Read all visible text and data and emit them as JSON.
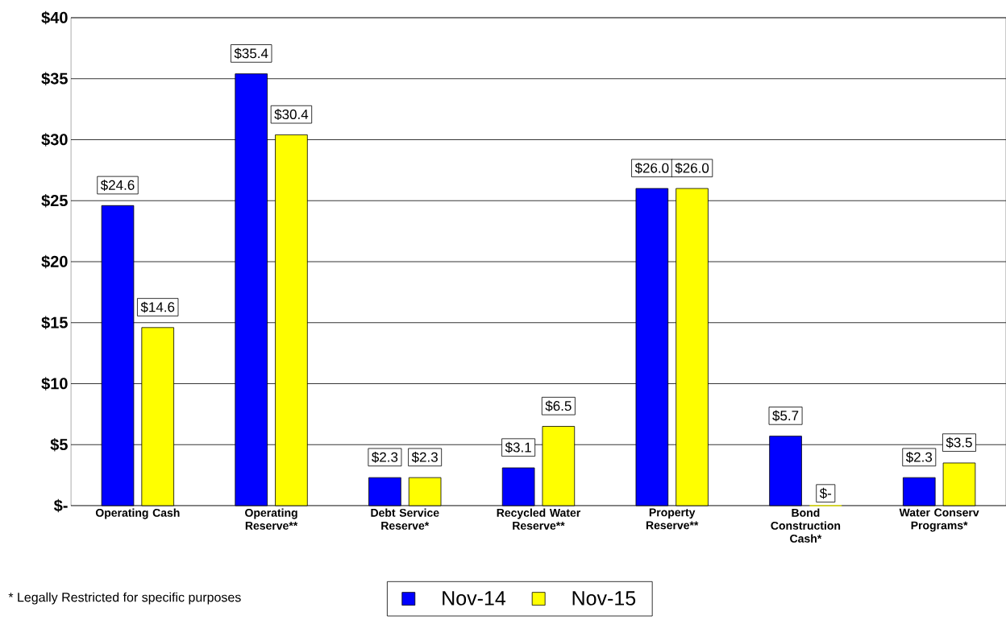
{
  "chart_data": {
    "type": "bar",
    "categories": [
      "Operating Cash",
      "Operating Reserve**",
      "Debt Service Reserve*",
      "Recycled Water Reserve**",
      "Property Reserve**",
      "Bond Construction Cash*",
      "Water Conserv Programs*"
    ],
    "series": [
      {
        "name": "Nov-14",
        "color": "#0000ff",
        "values": [
          24.6,
          35.4,
          2.3,
          3.1,
          26.0,
          5.7,
          2.3
        ],
        "value_labels": [
          "$24.6",
          "$35.4",
          "$2.3",
          "$3.1",
          "$26.0",
          "$5.7",
          "$2.3"
        ]
      },
      {
        "name": "Nov-15",
        "color": "#ffff00",
        "values": [
          14.6,
          30.4,
          2.3,
          6.5,
          26.0,
          0,
          3.5
        ],
        "value_labels": [
          "$14.6",
          "$30.4",
          "$2.3",
          "$6.5",
          "$26.0",
          "$-",
          "$3.5"
        ]
      }
    ],
    "ylim": [
      0,
      40
    ],
    "yticks": [
      {
        "value": 0,
        "label": "$-"
      },
      {
        "value": 5,
        "label": "$5"
      },
      {
        "value": 10,
        "label": "$10"
      },
      {
        "value": 15,
        "label": "$15"
      },
      {
        "value": 20,
        "label": "$20"
      },
      {
        "value": 25,
        "label": "$25"
      },
      {
        "value": 30,
        "label": "$30"
      },
      {
        "value": 35,
        "label": "$35"
      },
      {
        "value": 40,
        "label": "$40"
      }
    ],
    "grid": "y",
    "legend": "bottom",
    "annotations": [
      "*  Legally Restricted for specific purposes"
    ]
  }
}
